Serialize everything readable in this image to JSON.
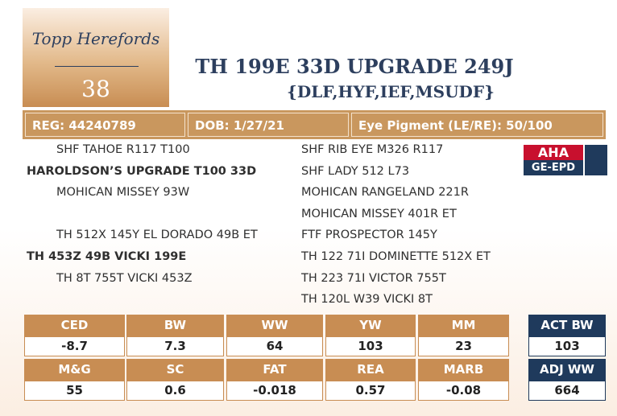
{
  "header": {
    "logo": "Topp Herefords",
    "lot": "38",
    "title": "TH 199E 33D UPGRADE 249J",
    "subtitle": "{DLF,HYF,IEF,MSUDF}"
  },
  "info": [
    "REG: 44240789",
    "DOB: 1/27/21",
    "Eye Pigment (LE/RE): 50/100"
  ],
  "pedigree": {
    "sire": {
      "sire": "SHF TAHOE R117 T100",
      "name": "HAROLDSON’S UPGRADE T100 33D",
      "dam": "MOHICAN MISSEY 93W"
    },
    "dam": {
      "sire": "TH 512X 145Y EL DORADO 49B ET",
      "name": "TH 453Z 49B VICKI 199E",
      "dam": "TH 8T 755T VICKI 453Z"
    },
    "grandparents": [
      "SHF RIB EYE M326 R117",
      "SHF LADY 512 L73",
      "MOHICAN RANGELAND 221R",
      "MOHICAN MISSEY 401R ET",
      "FTF PROSPECTOR 145Y",
      "TH 122 71I DOMINETTE 512X ET",
      "TH 223 71I VICTOR 755T",
      "TH 120L W39 VICKI 8T"
    ]
  },
  "badge": {
    "top": "AHA",
    "bottom": "GE-EPD"
  },
  "epd": {
    "rows": [
      {
        "headers": [
          "CED",
          "BW",
          "WW",
          "YW",
          "MM"
        ],
        "values": [
          "-8.7",
          "7.3",
          "64",
          "103",
          "23"
        ]
      },
      {
        "headers": [
          "M&G",
          "SC",
          "FAT",
          "REA",
          "MARB"
        ],
        "values": [
          "55",
          "0.6",
          "-0.018",
          "0.57",
          "-0.08"
        ]
      }
    ]
  },
  "weights": [
    {
      "label": "ACT BW",
      "value": "103"
    },
    {
      "label": "ADJ WW",
      "value": "664"
    }
  ]
}
